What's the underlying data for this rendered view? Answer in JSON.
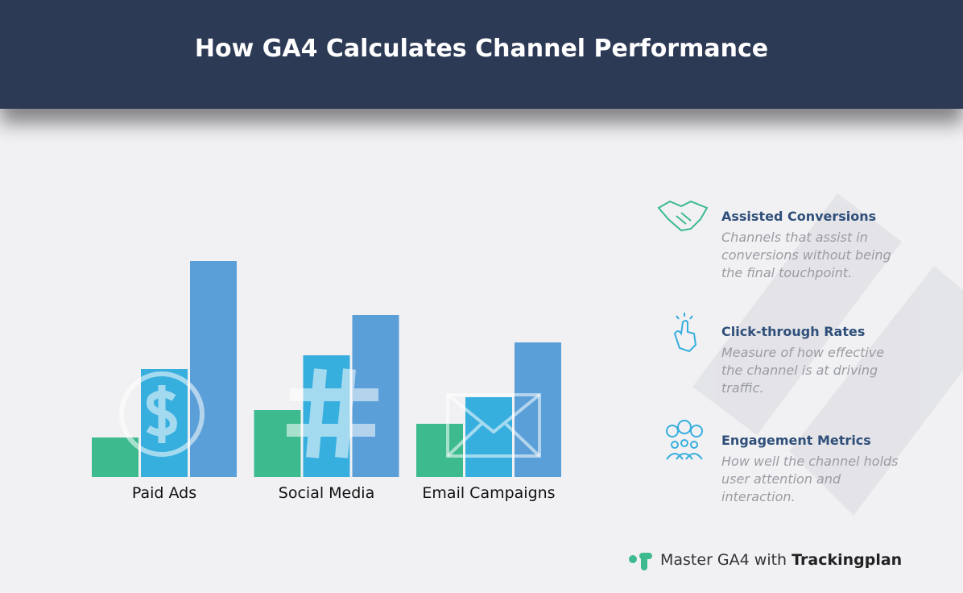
{
  "header": {
    "title": "How GA4 Calculates Channel Performance"
  },
  "chart_data": {
    "type": "bar",
    "categories": [
      "Paid Ads",
      "Social Media",
      "Email Campaigns"
    ],
    "series": [
      {
        "color": "#3dba8e",
        "values": [
          49,
          83,
          66
        ]
      },
      {
        "color": "#36aede",
        "values": [
          134,
          151,
          99
        ]
      },
      {
        "color": "#5a9fd8",
        "values": [
          268,
          201,
          167
        ]
      }
    ],
    "ylim": [
      0,
      300
    ]
  },
  "features": [
    {
      "title": "Assisted Conversions",
      "description": "Channels that assist in conversions without being the final touchpoint."
    },
    {
      "title": "Click-through Rates",
      "description": "Measure of how effective the channel is at driving traffic."
    },
    {
      "title": "Engagement Metrics",
      "description": "How well the channel holds user attention and interaction."
    }
  ],
  "footer": {
    "prefix": "Master GA4 with",
    "brand": "Trackingplan"
  }
}
